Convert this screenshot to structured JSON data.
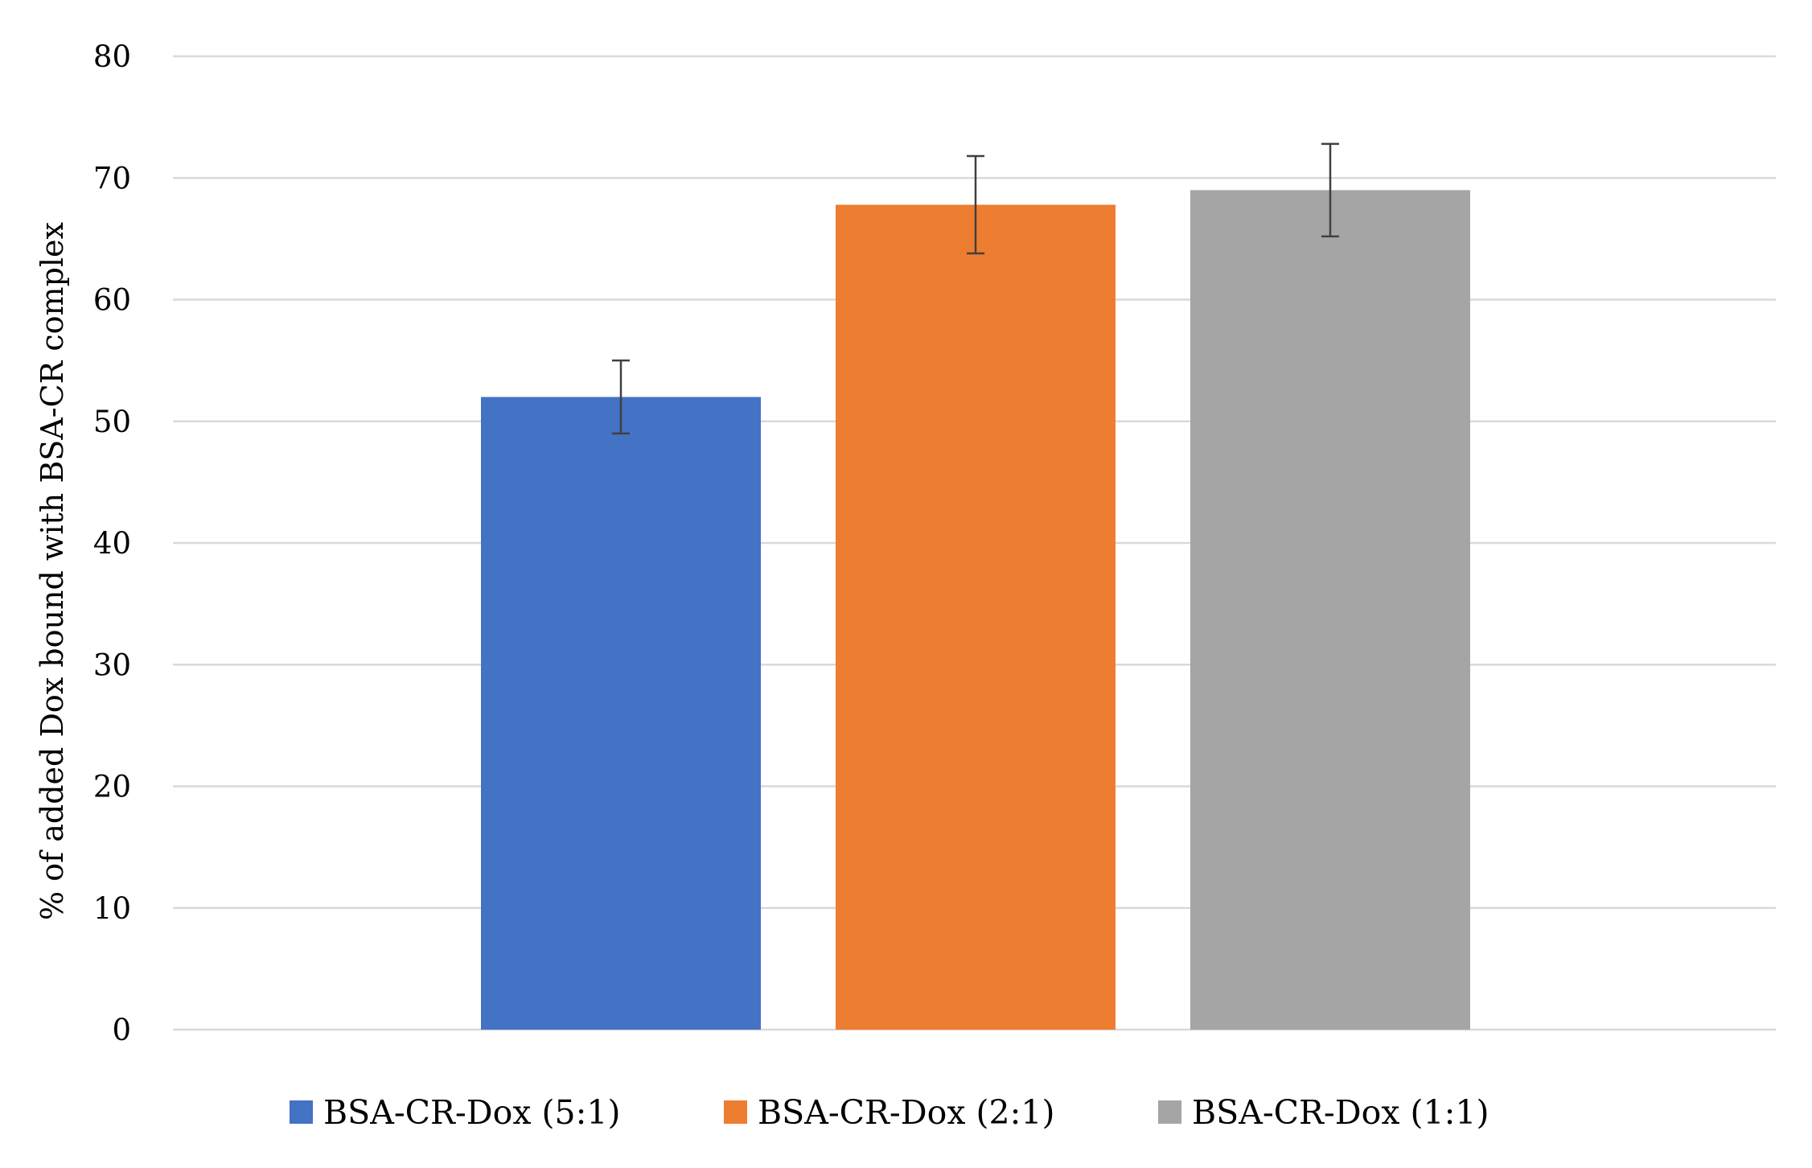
{
  "chart_data": {
    "type": "bar",
    "title": "",
    "xlabel": "",
    "ylabel": "% of added Dox bound with BSA-CR complex",
    "ylim": [
      0,
      80
    ],
    "yticks": [
      0,
      10,
      20,
      30,
      40,
      50,
      60,
      70,
      80
    ],
    "grid": true,
    "legend_position": "bottom",
    "series": [
      {
        "name": "BSA-CR-Dox (5:1)",
        "value": 52,
        "error": 3,
        "color": "#4472C4"
      },
      {
        "name": "BSA-CR-Dox (2:1)",
        "value": 67.8,
        "error": 4,
        "color": "#ED7D31"
      },
      {
        "name": "BSA-CR-Dox (1:1)",
        "value": 69,
        "error": 3.8,
        "color": "#A5A5A5"
      }
    ]
  }
}
